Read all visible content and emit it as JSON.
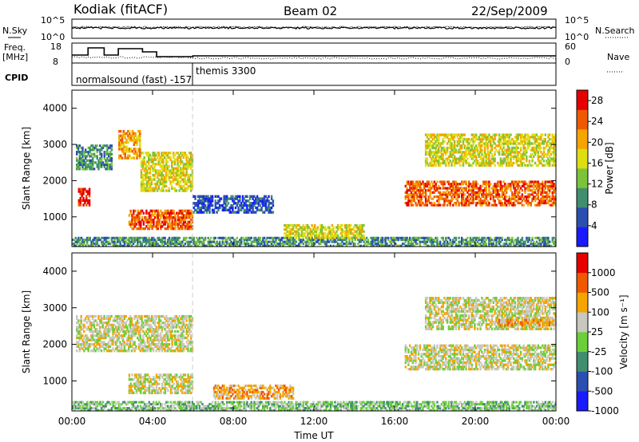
{
  "header": {
    "station": "Kodiak (fitACF)",
    "beam": "Beam 02",
    "date": "22/Sep/2009"
  },
  "top_panel": {
    "left_label": "N.Sky",
    "left_ticks": [
      "10^5",
      "10^0"
    ],
    "right_label": "N.Search",
    "right_ticks": [
      "10^5",
      "10^0"
    ]
  },
  "freq_panel": {
    "left_label_1": "Freq.",
    "left_label_2": "[MHz]",
    "left_ticks": [
      "18",
      "8"
    ],
    "right_label": "Nave",
    "right_ticks": [
      "60",
      "0"
    ]
  },
  "cpid_panel": {
    "label": "CPID",
    "modes": [
      "normalsound (fast) -157",
      "themis 3300"
    ]
  },
  "chart_data": [
    {
      "type": "heatmap",
      "title": "Power",
      "ylabel": "Slant Range [km]",
      "xlabel": "",
      "x_ticks": [
        "00:00",
        "04:00",
        "08:00",
        "12:00",
        "16:00",
        "20:00",
        "00:00"
      ],
      "y_ticks": [
        "1000",
        "2000",
        "3000",
        "4000"
      ],
      "ylim": [
        180,
        4500
      ],
      "xlim_hours": [
        0,
        24
      ],
      "colorbar": {
        "label": "Power [dB]",
        "ticks": [
          "4",
          "8",
          "12",
          "16",
          "20",
          "24",
          "28"
        ],
        "range": [
          0,
          30
        ],
        "colors": [
          "#1a1aff",
          "#2a4fb0",
          "#3f8f6f",
          "#7dc33a",
          "#dede12",
          "#f5a400",
          "#ef5a00",
          "#e60000"
        ]
      },
      "regions": [
        {
          "t0": 0.2,
          "t1": 2.0,
          "r0": 2300,
          "r1": 3000,
          "level": 2
        },
        {
          "t0": 0.3,
          "t1": 0.9,
          "r0": 1300,
          "r1": 1800,
          "level": 7
        },
        {
          "t0": 2.3,
          "t1": 3.4,
          "r0": 2600,
          "r1": 3400,
          "level": 5
        },
        {
          "t0": 3.4,
          "t1": 6.0,
          "r0": 1700,
          "r1": 2800,
          "level": 4
        },
        {
          "t0": 2.8,
          "t1": 6.0,
          "r0": 650,
          "r1": 1200,
          "level": 6
        },
        {
          "t0": 16.5,
          "t1": 24.0,
          "r0": 1300,
          "r1": 2000,
          "level": 6
        },
        {
          "t0": 17.5,
          "t1": 24.0,
          "r0": 2400,
          "r1": 3300,
          "level": 4
        },
        {
          "t0": 0.0,
          "t1": 24.0,
          "r0": 180,
          "r1": 450,
          "level": 2
        },
        {
          "t0": 10.5,
          "t1": 14.5,
          "r0": 400,
          "r1": 800,
          "level": 4
        },
        {
          "t0": 6.0,
          "t1": 10.0,
          "r0": 1100,
          "r1": 1600,
          "level": 1
        }
      ]
    },
    {
      "type": "heatmap",
      "title": "Velocity",
      "ylabel": "Slant Range [km]",
      "xlabel": "Time UT",
      "x_ticks": [
        "00:00",
        "04:00",
        "08:00",
        "12:00",
        "16:00",
        "20:00",
        "00:00"
      ],
      "y_ticks": [
        "1000",
        "2000",
        "3000",
        "4000"
      ],
      "ylim": [
        180,
        4500
      ],
      "xlim_hours": [
        0,
        24
      ],
      "colorbar": {
        "label": "Velocity [m s⁻¹]",
        "ticks": [
          "1000",
          "500",
          "100",
          "25",
          "-25",
          "-100",
          "-500",
          "-1000"
        ],
        "colors": [
          "#1a1aff",
          "#2a4fb0",
          "#3f8f6f",
          "#6ccf3a",
          "#c8c8c0",
          "#f5a400",
          "#ef5a00",
          "#e60000"
        ]
      },
      "regions": [
        {
          "t0": 0.2,
          "t1": 6.0,
          "r0": 1800,
          "r1": 2800,
          "level": 4
        },
        {
          "t0": 2.8,
          "t1": 6.0,
          "r0": 650,
          "r1": 1200,
          "level": 4
        },
        {
          "t0": 16.5,
          "t1": 24.0,
          "r0": 1300,
          "r1": 2000,
          "level": 4
        },
        {
          "t0": 17.5,
          "t1": 24.0,
          "r0": 2400,
          "r1": 3300,
          "level": 4
        },
        {
          "t0": 21.0,
          "t1": 24.0,
          "r0": 2500,
          "r1": 2700,
          "level": 5
        },
        {
          "t0": 0.0,
          "t1": 24.0,
          "r0": 180,
          "r1": 450,
          "level": 3
        },
        {
          "t0": 7.0,
          "t1": 11.0,
          "r0": 500,
          "r1": 900,
          "level": 5
        }
      ]
    }
  ]
}
